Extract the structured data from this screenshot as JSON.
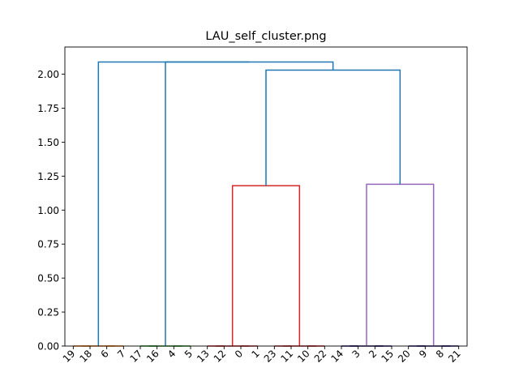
{
  "chart_data": {
    "type": "dendrogram",
    "title": "LAU_self_cluster.png",
    "xlabel": "",
    "ylabel": "",
    "ylim": [
      0,
      2.2
    ],
    "y_ticks": [
      "0.00",
      "0.25",
      "0.50",
      "0.75",
      "1.00",
      "1.25",
      "1.50",
      "1.75",
      "2.00"
    ],
    "y_tick_values": [
      0,
      0.25,
      0.5,
      0.75,
      1.0,
      1.25,
      1.5,
      1.75,
      2.0
    ],
    "leaf_labels": [
      "19",
      "18",
      "6",
      "7",
      "17",
      "16",
      "4",
      "5",
      "13",
      "12",
      "0",
      "1",
      "23",
      "11",
      "10",
      "22",
      "14",
      "3",
      "2",
      "15",
      "20",
      "9",
      "8",
      "21"
    ],
    "grid": false,
    "colors": {
      "orange": "#ff7f0e",
      "green": "#2ca02c",
      "red": "#d62728",
      "purple": "#9467bd",
      "indigo": "#1f0f6e",
      "blue": "#1f77b4"
    },
    "links": [
      {
        "color": "orange",
        "x": [
          0,
          1,
          1,
          1
        ],
        "y": [
          0,
          0,
          0,
          0
        ]
      },
      {
        "color": "orange",
        "x": [
          2,
          2.5,
          2.5,
          3
        ],
        "y": [
          0,
          0,
          0,
          0
        ]
      },
      {
        "color": "orange",
        "x": [
          0.5,
          0.5,
          2.5,
          2.5
        ],
        "y": [
          0,
          0,
          0,
          0
        ]
      },
      {
        "color": "green",
        "x": [
          4,
          4,
          5,
          5
        ],
        "y": [
          0,
          0,
          0,
          0
        ]
      },
      {
        "color": "green",
        "x": [
          6,
          6,
          7,
          7
        ],
        "y": [
          0,
          0,
          0,
          0
        ]
      },
      {
        "color": "green",
        "x": [
          4.5,
          4.5,
          6.5,
          6.5
        ],
        "y": [
          0,
          0,
          0,
          0
        ]
      },
      {
        "color": "red",
        "x": [
          8,
          8,
          9,
          9
        ],
        "y": [
          0,
          0,
          0,
          0
        ]
      },
      {
        "color": "red",
        "x": [
          10,
          10,
          11,
          11
        ],
        "y": [
          0,
          0,
          0,
          0
        ]
      },
      {
        "color": "red",
        "x": [
          8.5,
          8.5,
          10.5,
          10.5
        ],
        "y": [
          0,
          0,
          0,
          0
        ]
      },
      {
        "color": "red",
        "x": [
          12,
          12,
          13,
          13
        ],
        "y": [
          0,
          0,
          0,
          0
        ]
      },
      {
        "color": "red",
        "x": [
          14,
          14,
          15,
          15
        ],
        "y": [
          0,
          0,
          0,
          0
        ]
      },
      {
        "color": "red",
        "x": [
          12.5,
          12.5,
          14.5,
          14.5
        ],
        "y": [
          0,
          0,
          0,
          0
        ]
      },
      {
        "color": "red",
        "x": [
          9.5,
          9.5,
          13.5,
          13.5
        ],
        "y": [
          0,
          1.18,
          1.18,
          0
        ]
      },
      {
        "color": "indigo",
        "x": [
          16,
          16,
          17,
          17
        ],
        "y": [
          0,
          0,
          0,
          0
        ]
      },
      {
        "color": "indigo",
        "x": [
          18,
          18,
          19,
          19
        ],
        "y": [
          0,
          0,
          0,
          0
        ]
      },
      {
        "color": "indigo",
        "x": [
          16.5,
          16.5,
          18.5,
          18.5
        ],
        "y": [
          0,
          0,
          0,
          0
        ]
      },
      {
        "color": "indigo",
        "x": [
          20,
          20,
          21,
          21
        ],
        "y": [
          0,
          0,
          0,
          0
        ]
      },
      {
        "color": "indigo",
        "x": [
          22,
          22,
          23,
          23
        ],
        "y": [
          0,
          0,
          0,
          0
        ]
      },
      {
        "color": "indigo",
        "x": [
          20.5,
          20.5,
          22.5,
          22.5
        ],
        "y": [
          0,
          0,
          0,
          0
        ]
      },
      {
        "color": "purple",
        "x": [
          17.5,
          17.5,
          21.5,
          21.5
        ],
        "y": [
          0,
          1.19,
          1.19,
          0
        ]
      },
      {
        "color": "blue",
        "x": [
          11.5,
          11.5,
          19.5,
          19.5
        ],
        "y": [
          1.18,
          2.03,
          2.03,
          1.19
        ]
      },
      {
        "color": "blue",
        "x": [
          5.5,
          5.5,
          15.5,
          15.5
        ],
        "y": [
          0,
          2.09,
          2.09,
          2.03
        ]
      },
      {
        "color": "blue",
        "x": [
          1.5,
          1.5,
          10.5,
          10.5
        ],
        "y": [
          0,
          2.09,
          2.09,
          2.09
        ]
      }
    ]
  }
}
